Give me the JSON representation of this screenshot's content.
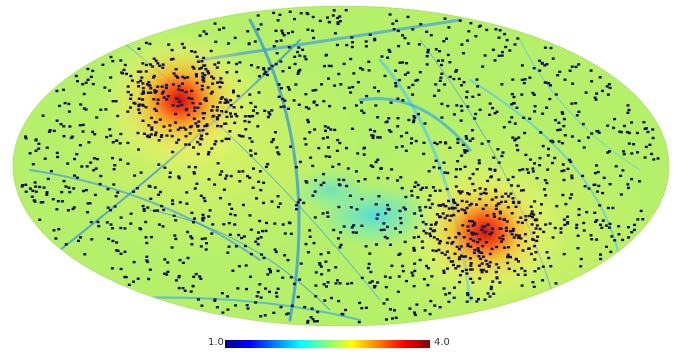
{
  "map": {
    "projection": "mollweide",
    "grid": false,
    "colormap": "jet",
    "background_color": "#b6f06a",
    "hotspot_color": "#c81414",
    "point_source_color": "#12124e",
    "features": [
      {
        "kind": "hotspot",
        "lon": -100,
        "lat": 40,
        "peak": 4.0
      },
      {
        "kind": "hotspot",
        "lon": 80,
        "lat": -35,
        "peak": 4.0
      },
      {
        "kind": "low-region",
        "lon": 35,
        "lat": -15,
        "value": 1.6
      }
    ]
  },
  "colorbar": {
    "min_label": "1.0",
    "max_label": "4.0",
    "range": [
      1.0,
      4.0
    ],
    "stops": [
      "#00008f",
      "#0000ff",
      "#00ffff",
      "#ffff00",
      "#ff0000",
      "#800000"
    ]
  }
}
